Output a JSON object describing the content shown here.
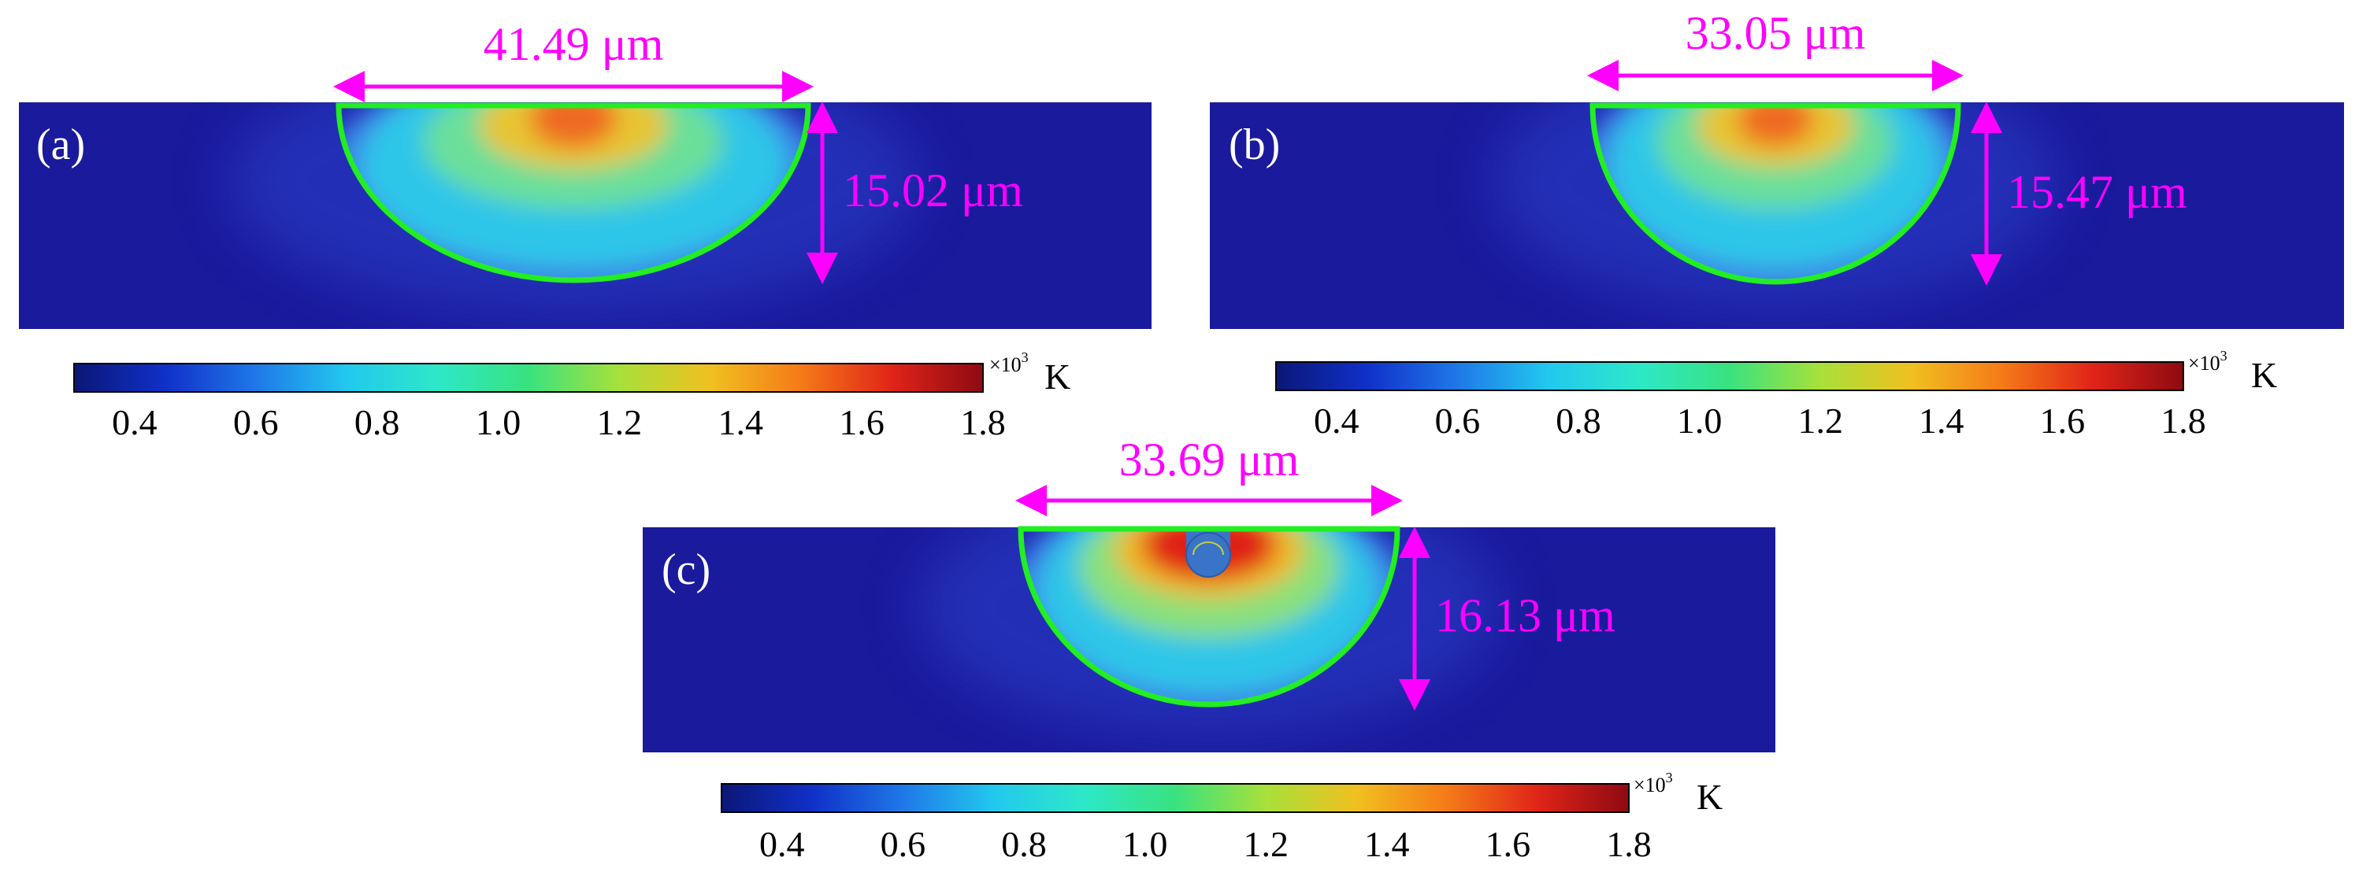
{
  "colors": {
    "background_field": "#1a1a9c",
    "pool_outline": "#22ee22",
    "annotation": "#ff00ff",
    "colormap": [
      "#0b1777",
      "#1030c8",
      "#1f78e8",
      "#22c8ee",
      "#2de8c8",
      "#39e27f",
      "#a8e03a",
      "#f0c020",
      "#f57a18",
      "#e02418",
      "#8e0a12"
    ]
  },
  "colorbar": {
    "multiplier": "×10",
    "exponent": "3",
    "unit": "K",
    "ticks": [
      "0.4",
      "0.6",
      "0.8",
      "1.0",
      "1.2",
      "1.4",
      "1.6",
      "1.8"
    ],
    "range": [
      0.3,
      1.8
    ]
  },
  "panels": [
    {
      "label": "(a)",
      "width_text": "41.49 μm",
      "depth_text": "15.02 μm",
      "peak_temp": 1.55,
      "particle": false
    },
    {
      "label": "(b)",
      "width_text": "33.05 μm",
      "depth_text": "15.47 μm",
      "peak_temp": 1.5,
      "particle": false
    },
    {
      "label": "(c)",
      "width_text": "33.69 μm",
      "depth_text": "16.13 μm",
      "peak_temp": 1.7,
      "particle": true
    }
  ]
}
